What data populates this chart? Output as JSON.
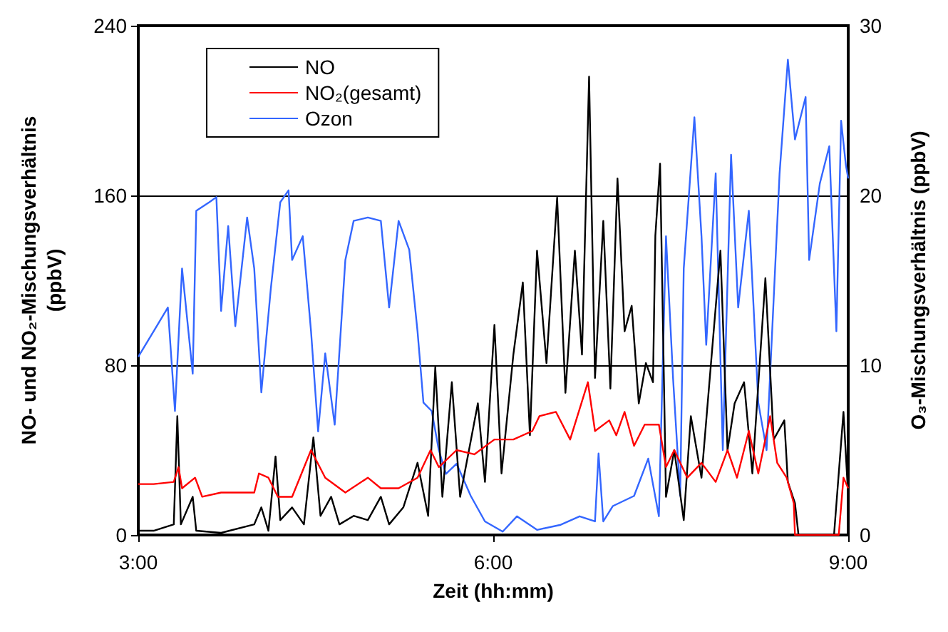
{
  "chart_data": {
    "type": "line",
    "xlabel": "Zeit (hh:mm)",
    "ylabel": "NO- und NO₂-Mischungsverhältnis\n(ppbV)",
    "y2label": "O₃-Mischungsverhältnis (ppbV)",
    "xlim": [
      3,
      9
    ],
    "xticks": [
      {
        "value": 3,
        "label": "3:00"
      },
      {
        "value": 6,
        "label": "6:00"
      },
      {
        "value": 9,
        "label": "9:00"
      }
    ],
    "ylim": [
      0,
      240
    ],
    "yticks": [
      0,
      80,
      160,
      240
    ],
    "y2lim": [
      0,
      30
    ],
    "y2ticks": [
      0,
      10,
      20,
      30
    ],
    "grid": "y",
    "legend": "top left",
    "marker": "none",
    "line_style": "solid",
    "series": [
      {
        "name": "NO",
        "color": "#000000",
        "x": [
          3.0,
          3.13,
          3.3,
          3.33,
          3.36,
          3.46,
          3.49,
          3.7,
          3.98,
          4.04,
          4.1,
          4.16,
          4.2,
          4.3,
          4.4,
          4.48,
          4.54,
          4.63,
          4.7,
          4.82,
          4.94,
          5.05,
          5.12,
          5.24,
          5.36,
          5.45,
          5.51,
          5.57,
          5.65,
          5.72,
          5.87,
          5.93,
          6.01,
          6.07,
          6.17,
          6.25,
          6.31,
          6.37,
          6.45,
          6.54,
          6.61,
          6.69,
          6.75,
          6.81,
          6.86,
          6.93,
          6.99,
          7.05,
          7.11,
          7.17,
          7.23,
          7.29,
          7.35,
          7.37,
          7.41,
          7.46,
          7.53,
          7.61,
          7.67,
          7.76,
          7.83,
          7.92,
          7.98,
          8.04,
          8.12,
          8.19,
          8.3,
          8.37,
          8.46,
          8.49,
          8.55,
          8.58,
          8.88,
          8.96,
          9.0
        ],
        "values": [
          2,
          2,
          5,
          56,
          5,
          18,
          2,
          1,
          5,
          13,
          2,
          37,
          7,
          13,
          5,
          46,
          9,
          18,
          5,
          9,
          7,
          18,
          5,
          13,
          34,
          9,
          79,
          18,
          72,
          18,
          62,
          25,
          99,
          29,
          85,
          119,
          47,
          134,
          81,
          159,
          67,
          134,
          85,
          216,
          74,
          148,
          69,
          168,
          96,
          108,
          62,
          81,
          72,
          141,
          175,
          18,
          40,
          7,
          56,
          27,
          74,
          134,
          40,
          62,
          72,
          29,
          121,
          45,
          54,
          25,
          15,
          0,
          0,
          58,
          18
        ]
      },
      {
        "name": "NO₂(gesamt)",
        "color": "#ff0000",
        "x": [
          3.0,
          3.13,
          3.3,
          3.34,
          3.37,
          3.48,
          3.54,
          3.7,
          3.98,
          4.02,
          4.1,
          4.18,
          4.3,
          4.46,
          4.58,
          4.75,
          4.94,
          5.05,
          5.2,
          5.36,
          5.47,
          5.54,
          5.69,
          5.84,
          6.01,
          6.17,
          6.33,
          6.39,
          6.53,
          6.65,
          6.8,
          6.86,
          6.98,
          7.04,
          7.11,
          7.19,
          7.28,
          7.4,
          7.46,
          7.53,
          7.64,
          7.76,
          7.88,
          7.98,
          8.06,
          8.16,
          8.24,
          8.34,
          8.4,
          8.48,
          8.54,
          8.55,
          8.92,
          8.96,
          9.0
        ],
        "values": [
          24,
          24,
          25,
          32,
          22,
          27,
          18,
          20,
          20,
          29,
          27,
          18,
          18,
          40,
          27,
          20,
          27,
          22,
          22,
          27,
          40,
          32,
          40,
          38,
          45,
          45,
          49,
          56,
          58,
          45,
          72,
          49,
          54,
          47,
          58,
          42,
          52,
          52,
          32,
          40,
          27,
          34,
          25,
          40,
          27,
          49,
          29,
          56,
          34,
          27,
          15,
          0,
          0,
          27,
          22
        ]
      },
      {
        "name": "Ozon",
        "color": "#3366ff",
        "axis": "y2",
        "x": [
          3.0,
          3.13,
          3.25,
          3.31,
          3.37,
          3.46,
          3.49,
          3.6,
          3.66,
          3.7,
          3.76,
          3.82,
          3.92,
          3.98,
          4.04,
          4.12,
          4.2,
          4.27,
          4.3,
          4.39,
          4.46,
          4.52,
          4.58,
          4.66,
          4.75,
          4.82,
          4.94,
          5.05,
          5.12,
          5.2,
          5.29,
          5.36,
          5.41,
          5.48,
          5.54,
          5.6,
          5.69,
          5.81,
          5.93,
          6.08,
          6.2,
          6.37,
          6.57,
          6.73,
          6.86,
          6.89,
          6.93,
          7.01,
          7.19,
          7.31,
          7.4,
          7.46,
          7.52,
          7.58,
          7.61,
          7.7,
          7.76,
          7.8,
          7.88,
          7.94,
          8.01,
          8.07,
          8.16,
          8.24,
          8.31,
          8.42,
          8.49,
          8.55,
          8.64,
          8.67,
          8.76,
          8.84,
          8.9,
          8.94,
          8.98,
          9.0
        ],
        "values": [
          10.5,
          12.0,
          13.4,
          7.3,
          15.7,
          9.5,
          19.1,
          19.6,
          19.9,
          13.2,
          18.2,
          12.3,
          18.7,
          15.7,
          8.4,
          14.5,
          19.6,
          20.3,
          16.2,
          17.6,
          12.0,
          6.1,
          10.7,
          6.5,
          16.2,
          18.5,
          18.7,
          18.5,
          13.4,
          18.5,
          16.8,
          12.0,
          7.8,
          7.3,
          5.0,
          3.6,
          4.2,
          2.3,
          0.8,
          0.2,
          1.1,
          0.3,
          0.6,
          1.1,
          0.8,
          4.8,
          0.8,
          1.7,
          2.3,
          4.5,
          1.1,
          17.6,
          9.2,
          2.3,
          15.7,
          24.6,
          17.6,
          11.2,
          21.3,
          5.0,
          22.4,
          13.4,
          19.1,
          7.8,
          5.0,
          21.3,
          28.0,
          23.3,
          25.8,
          16.2,
          20.7,
          22.9,
          12.0,
          24.4,
          21.8,
          21.0
        ]
      }
    ]
  }
}
